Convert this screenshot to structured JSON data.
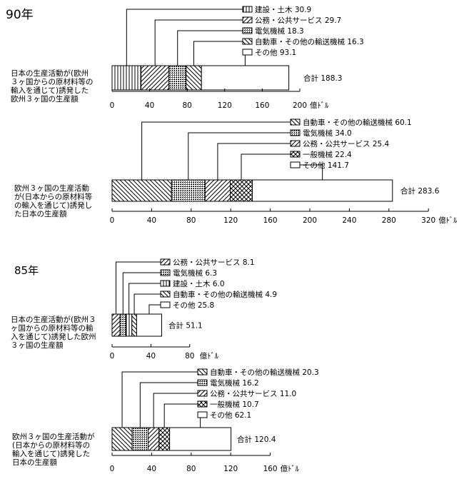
{
  "chart_data": [
    {
      "type": "bar",
      "stacked": true,
      "section_title": "90年",
      "category_label": "日本の生産活動が(欧州３ヶ国からの原材料等の輸入を通じて)誘発した欧州３ヶ国の生産額",
      "category_lines": [
        "日本の生産活動が(欧州",
        "３ヶ国からの原材料等の",
        "輸入を通じて)誘発した",
        "欧州３ヶ国の生産額"
      ],
      "series": [
        {
          "name": "建設・土木",
          "value": 30.9,
          "label": "建設・土木 30.9",
          "pattern": "vlines"
        },
        {
          "name": "公務・公共サービス",
          "value": 29.7,
          "label": "公務・公共サービス 29.7",
          "pattern": "diag"
        },
        {
          "name": "電気機械",
          "value": 18.3,
          "label": "電気機械 18.3",
          "pattern": "dense"
        },
        {
          "name": "自動車・その他の輸送機械",
          "value": 16.3,
          "label": "自動車・その他の輸送機械 16.3",
          "pattern": "backdiag"
        },
        {
          "name": "その他",
          "value": 93.1,
          "label": "その他 93.1",
          "pattern": "none"
        }
      ],
      "total_label": "合計 188.3",
      "xticks": [
        "0",
        "40",
        "80",
        "120",
        "160",
        "200"
      ],
      "xlim": [
        0,
        200
      ],
      "xlabel": "億ﾄﾞﾙ"
    },
    {
      "type": "bar",
      "stacked": true,
      "section_title": "",
      "category_label": "欧州３ヶ国の生産活動が(日本からの原材料等の輸入を通じて)誘発した日本の生産額",
      "category_lines": [
        "欧州３ヶ国の生産活動",
        "が(日本からの原材料等",
        "の輸入を通じて)誘発し",
        "た日本の生産額"
      ],
      "series": [
        {
          "name": "自動車・その他の輸送機械",
          "value": 60.1,
          "label": "自動車・その他の輸送機械 60.1",
          "pattern": "backdiag"
        },
        {
          "name": "電気機械",
          "value": 34.0,
          "label": "電気機械 34.0",
          "pattern": "dense"
        },
        {
          "name": "公務・公共サービス",
          "value": 25.4,
          "label": "公務・公共サービス 25.4",
          "pattern": "diag"
        },
        {
          "name": "一般機械",
          "value": 22.4,
          "label": "一般機械 22.4",
          "pattern": "cross"
        },
        {
          "name": "その他",
          "value": 141.7,
          "label": "その他 141.7",
          "pattern": "none"
        }
      ],
      "total_label": "合計 283.6",
      "xticks": [
        "0",
        "40",
        "80",
        "120",
        "160",
        "200",
        "240",
        "280",
        "320"
      ],
      "xlim": [
        0,
        320
      ],
      "xlabel": "億ﾄﾞﾙ"
    },
    {
      "type": "bar",
      "stacked": true,
      "section_title": "85年",
      "category_label": "日本の生産活動が(欧州３ヶ国からの原材料等の輸入を通じて)誘発した欧州３ヶ国の生産額",
      "category_lines": [
        "日本の生産活動が(欧州３",
        "ヶ国からの原材料等の輸",
        "入を通じて)誘発した欧州",
        "３ヶ国の生産額"
      ],
      "series": [
        {
          "name": "公務・公共サービス",
          "value": 8.1,
          "label": "公務・公共サービス 8.1",
          "pattern": "diag"
        },
        {
          "name": "電気機械",
          "value": 6.3,
          "label": "電気機械 6.3",
          "pattern": "dense"
        },
        {
          "name": "建設・土木",
          "value": 6.0,
          "label": "建設・土木 6.0",
          "pattern": "vlines"
        },
        {
          "name": "自動車・その他の輸送機械",
          "value": 4.9,
          "label": "自動車・その他の輸送機械 4.9",
          "pattern": "backdiag"
        },
        {
          "name": "その他",
          "value": 25.8,
          "label": "その他 25.8",
          "pattern": "none"
        }
      ],
      "total_label": "合計 51.1",
      "xticks": [
        "0",
        "40",
        "80"
      ],
      "xlim": [
        0,
        80
      ],
      "xlabel": "億ﾄﾞﾙ"
    },
    {
      "type": "bar",
      "stacked": true,
      "section_title": "",
      "category_label": "欧州３ヶ国の生産活動が(日本からの原材料等の輸入を通じて)誘発した日本の生産額",
      "category_lines": [
        "欧州３ヶ国の生産活動が",
        "(日本からの原材料等の",
        "輸入を通じて)誘発した",
        "日本の生産額"
      ],
      "series": [
        {
          "name": "自動車・その他の輸送機械",
          "value": 20.3,
          "label": "自動車・その他の輸送機械 20.3",
          "pattern": "backdiag"
        },
        {
          "name": "電気機械",
          "value": 16.2,
          "label": "電気機械 16.2",
          "pattern": "dense"
        },
        {
          "name": "公務・公共サービス",
          "value": 11.0,
          "label": "公務・公共サービス 11.0",
          "pattern": "diag"
        },
        {
          "name": "一般機械",
          "value": 10.7,
          "label": "一般機械 10.7",
          "pattern": "cross"
        },
        {
          "name": "その他",
          "value": 62.1,
          "label": "その他 62.1",
          "pattern": "none"
        }
      ],
      "total_label": "合計 120.4",
      "xticks": [
        "0",
        "40",
        "80",
        "120",
        "160"
      ],
      "xlim": [
        0,
        160
      ],
      "xlabel": "億ﾄﾞﾙ"
    }
  ]
}
